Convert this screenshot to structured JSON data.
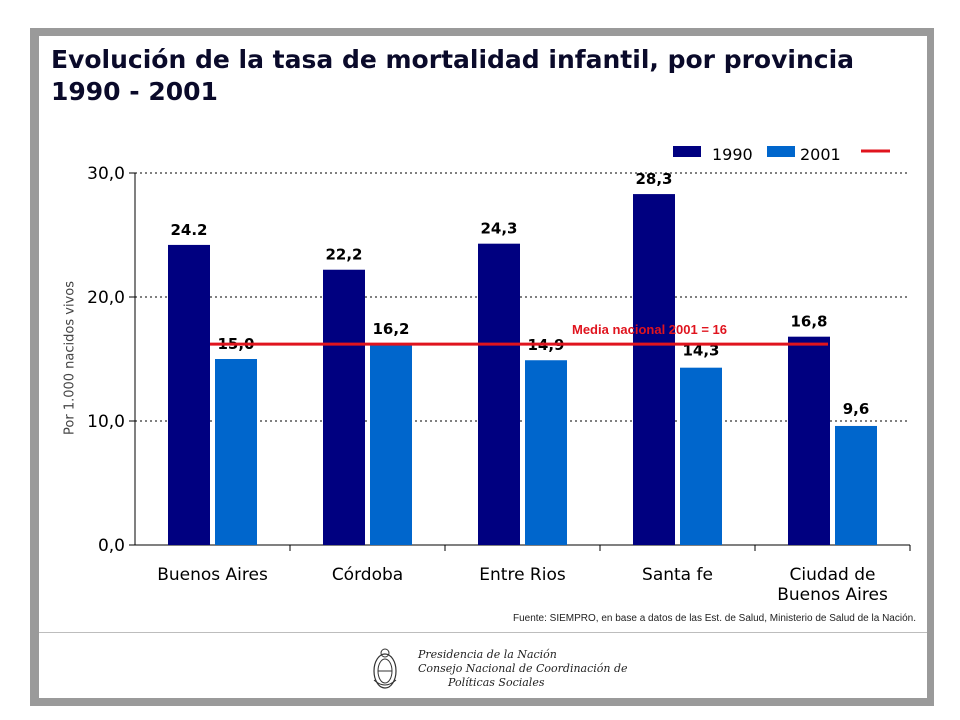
{
  "title_lines": [
    "Evolución de la tasa de mortalidad infantil, por provincia",
    "1990 - 2001"
  ],
  "source": "Fuente: SIEMPRO, en base a datos de las Est. de Salud, Ministerio de Salud de la Nación.",
  "logo": {
    "lines": [
      "Presidencia de la Nación",
      "Consejo Nacional de Coordinación de",
      "Políticas Sociales"
    ]
  },
  "chart_data": {
    "type": "bar",
    "title": "Evolución de la tasa de mortalidad infantil, por provincia 1990 - 2001",
    "xlabel": "",
    "ylabel": "Por 1.000 nacidos vivos",
    "categories": [
      [
        "Buenos Aires"
      ],
      [
        "Córdoba"
      ],
      [
        "Entre Rios"
      ],
      [
        "Santa fe"
      ],
      [
        "Ciudad de",
        "Buenos Aires"
      ]
    ],
    "series": [
      {
        "name": "1990",
        "color": "#000080",
        "values": [
          24.2,
          22.2,
          24.3,
          28.3,
          16.8
        ],
        "labels": [
          "24.2",
          "22,2",
          "24,3",
          "28,3",
          "16,8"
        ]
      },
      {
        "name": "2001",
        "color": "#0066cc",
        "values": [
          15.0,
          16.2,
          14.9,
          14.3,
          9.6
        ],
        "labels": [
          "15,0",
          "16,2",
          "14,9",
          "14,3",
          "9,6"
        ]
      }
    ],
    "ylim": [
      0,
      30
    ],
    "yticks": [
      0,
      10,
      20,
      30
    ],
    "ytick_labels": [
      "0,0",
      "10,0",
      "20,0",
      "30,0"
    ],
    "grid": "horizontal dashed",
    "legend": "top-right",
    "reference_line": {
      "value": 16.2,
      "label": "Media nacional 2001  = 16",
      "color": "#e0141e"
    }
  }
}
